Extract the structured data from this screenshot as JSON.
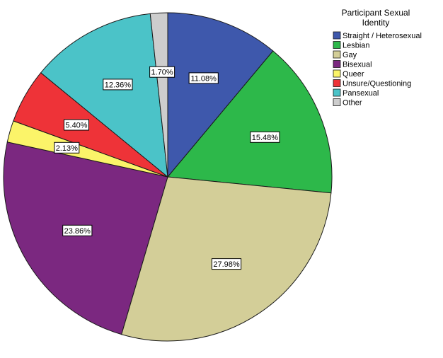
{
  "chart_data": {
    "type": "pie",
    "legend": {
      "title": [
        "Participant Sexual",
        "Identity"
      ],
      "placement": "top-right"
    },
    "slices": [
      {
        "name": "Straight / Heterosexual",
        "value": 11.08,
        "label": "11.08%",
        "color": "#3e58ac"
      },
      {
        "name": "Lesbian",
        "value": 15.48,
        "label": "15.48%",
        "color": "#2db84a"
      },
      {
        "name": "Gay",
        "value": 27.98,
        "label": "27.98%",
        "color": "#d3ce98"
      },
      {
        "name": "Bisexual",
        "value": 23.86,
        "label": "23.86%",
        "color": "#7b2880"
      },
      {
        "name": "Queer",
        "value": 2.13,
        "label": "2.13%",
        "color": "#fbf469"
      },
      {
        "name": "Unsure/Questioning",
        "value": 5.4,
        "label": "5.40%",
        "color": "#ee3338"
      },
      {
        "name": "Pansexual",
        "value": 12.36,
        "label": "12.36%",
        "color": "#4bc3c8"
      },
      {
        "name": "Other",
        "value": 1.7,
        "label": "1.70%",
        "color": "#cdcdcd"
      }
    ]
  }
}
